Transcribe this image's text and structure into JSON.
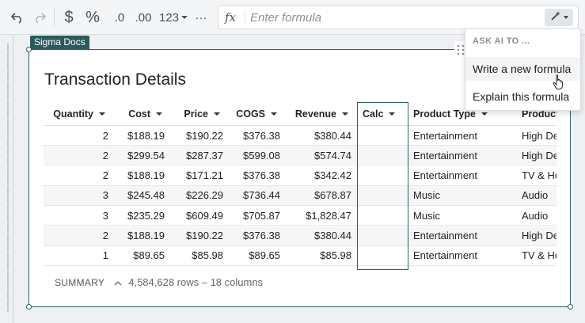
{
  "toolbar": {
    "undo_icon": "undo-icon",
    "redo_icon": "redo-icon",
    "currency_label": "$",
    "percent_label": "%",
    "dec_decrease_label": ".0",
    "dec_increase_label": ".00",
    "number_format_label": "123",
    "more_label": "···",
    "fx_label": "fx",
    "formula_placeholder": "Enter formula",
    "ai_icon": "magic-wand-icon"
  },
  "ai_menu": {
    "header": "ASK AI TO ...",
    "items": [
      "Write a new formula",
      "Explain this formula"
    ]
  },
  "element": {
    "tag": "Sigma Docs",
    "title": "Transaction Details"
  },
  "table": {
    "columns": [
      "Quantity",
      "Cost",
      "Price",
      "COGS",
      "Revenue",
      "Calc",
      "Product Type",
      "Product"
    ],
    "rows": [
      [
        "2",
        "$188.19",
        "$190.22",
        "$376.38",
        "$380.44",
        "",
        "Entertainment",
        "High De"
      ],
      [
        "2",
        "$299.54",
        "$287.37",
        "$599.08",
        "$574.74",
        "",
        "Entertainment",
        "High De"
      ],
      [
        "2",
        "$188.19",
        "$171.21",
        "$376.38",
        "$342.42",
        "",
        "Entertainment",
        "TV & Ho"
      ],
      [
        "3",
        "$245.48",
        "$226.29",
        "$736.44",
        "$678.87",
        "",
        "Music",
        "Audio"
      ],
      [
        "3",
        "$235.29",
        "$609.49",
        "$705.87",
        "$1,828.47",
        "",
        "Music",
        "Audio"
      ],
      [
        "2",
        "$188.19",
        "$190.22",
        "$376.38",
        "$380.44",
        "",
        "Entertainment",
        "High De"
      ],
      [
        "1",
        "$89.65",
        "$85.98",
        "$89.65",
        "$85.98",
        "",
        "Entertainment",
        "TV & Ho"
      ]
    ]
  },
  "summary": {
    "label": "SUMMARY",
    "counts": "4,584,628 rows – 18 columns"
  },
  "colors": {
    "accent": "#2c5a5e",
    "background": "#eef0f2"
  }
}
